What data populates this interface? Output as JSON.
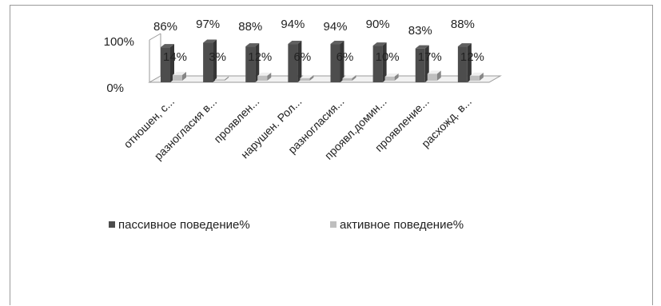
{
  "chart_data": {
    "type": "bar",
    "categories": [
      "отношен, с...",
      "разногласия в...",
      "проявлен...",
      "нарушен. Рол...",
      "разногласия...",
      "проявл.домин...",
      "проявление...",
      "расхожд. в..."
    ],
    "series": [
      {
        "name": "пассивное поведение%",
        "values": [
          86,
          97,
          88,
          94,
          94,
          90,
          83,
          88
        ],
        "labels": [
          "86%",
          "97%",
          "88%",
          "94%",
          "94%",
          "90%",
          "83%",
          "88%"
        ],
        "color": "#4d4d4d"
      },
      {
        "name": "активное поведение%",
        "values": [
          14,
          3,
          12,
          6,
          6,
          10,
          17,
          12
        ],
        "labels": [
          "14%",
          "3%",
          "12%",
          "6%",
          "6%",
          "10%",
          "17%",
          "12%"
        ],
        "color": "#bfbfbf"
      }
    ],
    "yticks": [
      "100%",
      "0%"
    ],
    "ylim": [
      0,
      100
    ],
    "legend_position": "bottom-left"
  }
}
